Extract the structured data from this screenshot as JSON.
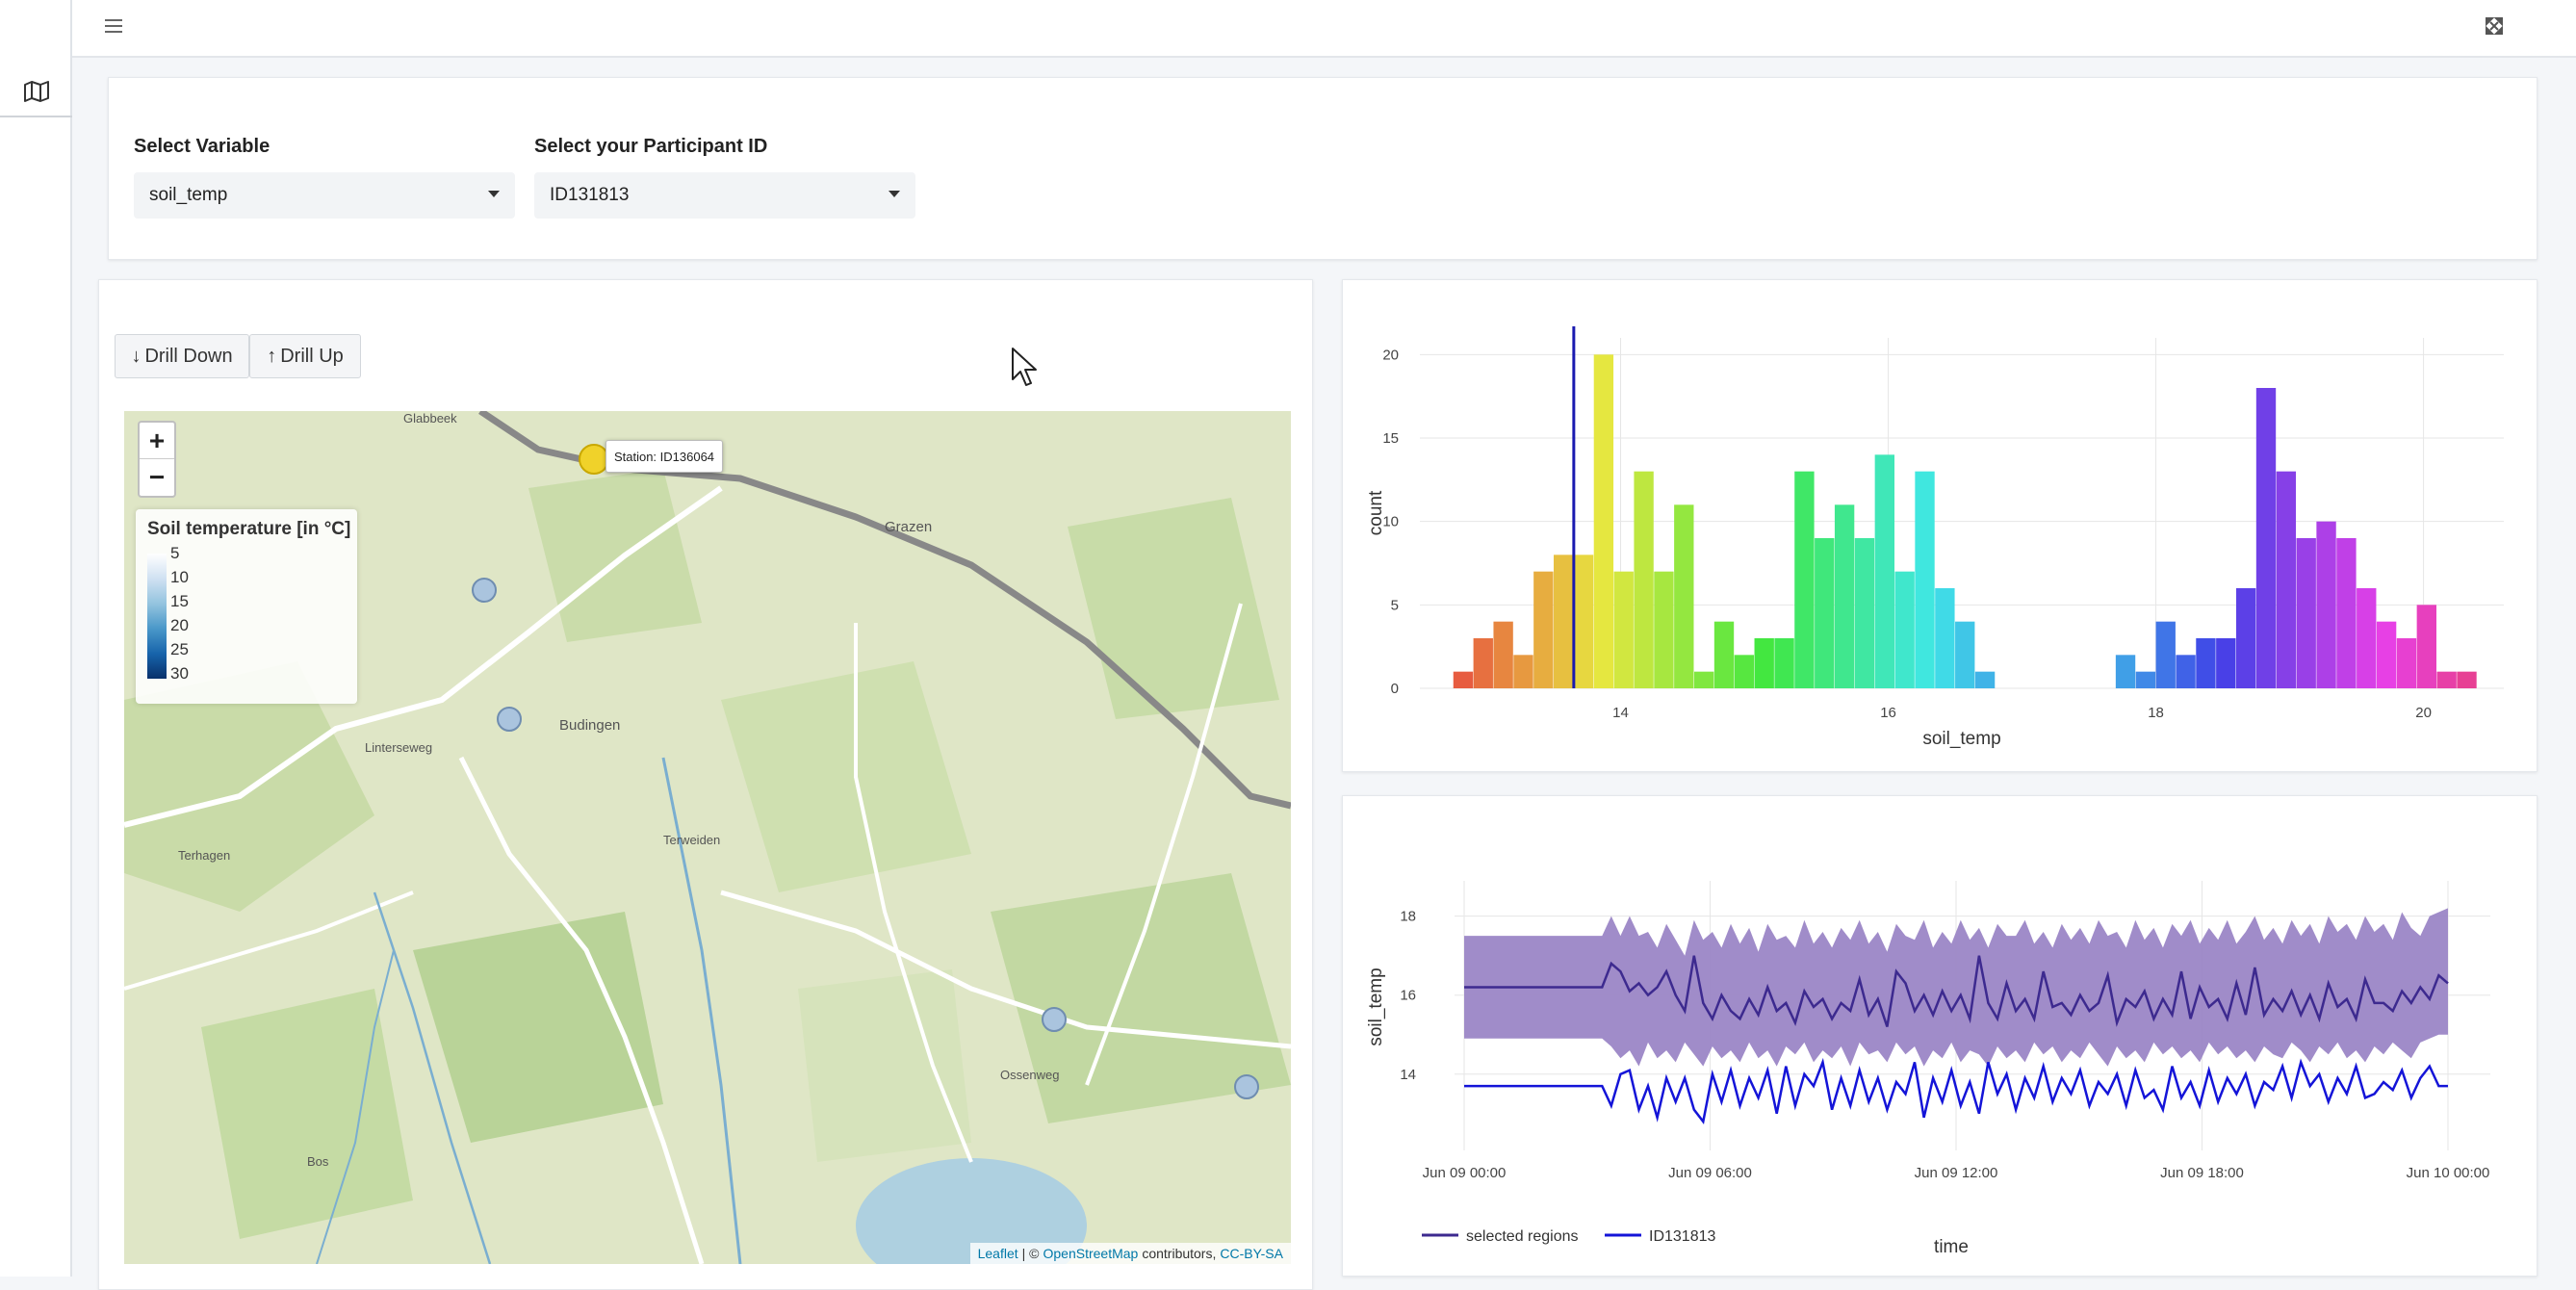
{
  "sidebar": {
    "map_icon": "map-icon"
  },
  "topbar": {
    "menu_icon": "hamburger-icon",
    "expand_icon": "expand-icon"
  },
  "controls": {
    "variable_label": "Select Variable",
    "variable_value": "soil_temp",
    "participant_label": "Select your Participant ID",
    "participant_value": "ID131813"
  },
  "map": {
    "drill_down": "Drill Down",
    "drill_up": "Drill Up",
    "zoom_in": "+",
    "zoom_out": "−",
    "legend_title": "Soil temperature [in °C]",
    "legend_ticks": [
      "5",
      "10",
      "15",
      "20",
      "25",
      "30"
    ],
    "tooltip": "Station: ID136064",
    "place_labels": [
      "Glabbeek",
      "Grazen",
      "Budingen",
      "Terweiden",
      "Terhagen",
      "Ossenweg",
      "Bos",
      "Linterseweg"
    ],
    "attribution": {
      "leaflet": "Leaflet",
      "sep": "| ©",
      "osm": "OpenStreetMap",
      "contrib": "contributors,",
      "license": "CC-BY-SA"
    },
    "colors": {
      "selected_station": "#f0d22a",
      "station": "#aac4de"
    }
  },
  "chart_data": [
    {
      "type": "bar",
      "title": "",
      "xlabel": "soil_temp",
      "ylabel": "count",
      "xlim": [
        12.5,
        20.6
      ],
      "ylim": [
        0,
        21
      ],
      "x_ticks": [
        14,
        16,
        18,
        20
      ],
      "y_ticks": [
        0,
        5,
        10,
        15,
        20
      ],
      "bin_width": 0.15,
      "bins_start": [
        12.75,
        12.9,
        13.05,
        13.2,
        13.35,
        13.5,
        13.65,
        13.8,
        13.95,
        14.1,
        14.25,
        14.4,
        14.55,
        14.7,
        14.85,
        15.0,
        15.15,
        15.3,
        15.45,
        15.6,
        15.75,
        15.9,
        16.05,
        16.2,
        16.35,
        16.5,
        16.65,
        17.7,
        17.85,
        18.0,
        18.15,
        18.3,
        18.45,
        18.6,
        18.75,
        18.9,
        19.05,
        19.2,
        19.35,
        19.5,
        19.65,
        19.8,
        19.95,
        20.1,
        20.25
      ],
      "counts": [
        1,
        3,
        4,
        2,
        7,
        8,
        8,
        20,
        7,
        13,
        7,
        11,
        1,
        4,
        2,
        3,
        3,
        13,
        9,
        11,
        9,
        14,
        7,
        13,
        6,
        4,
        1,
        2,
        1,
        4,
        2,
        3,
        3,
        6,
        18,
        13,
        9,
        10,
        9,
        6,
        4,
        3,
        5,
        1,
        1
      ],
      "marker_x": 13.65,
      "grid": true
    },
    {
      "type": "area",
      "title": "",
      "xlabel": "time",
      "ylabel": "soil_temp",
      "x_ticks": [
        "Jun 09 00:00",
        "Jun 09 06:00",
        "Jun 09 12:00",
        "Jun 09 18:00",
        "Jun 10 00:00"
      ],
      "y_ticks": [
        14,
        16,
        18
      ],
      "ylim": [
        12.8,
        18.6
      ],
      "band_upper": [
        17.5,
        17.5,
        17.5,
        17.5,
        17.5,
        17.5,
        17.5,
        17.5,
        17.5,
        17.5,
        17.5,
        17.5,
        17.5,
        17.5,
        17.5,
        17.5,
        18.0,
        17.5,
        18.0,
        17.5,
        17.6,
        17.2,
        17.8,
        17.4,
        17.0,
        17.9,
        17.4,
        17.6,
        17.2,
        17.8,
        17.3,
        17.7,
        17.1,
        17.8,
        17.4,
        17.5,
        17.2,
        17.9,
        17.3,
        17.6,
        17.2,
        17.7,
        17.4,
        17.9,
        17.3,
        17.6,
        17.1,
        17.8,
        17.5,
        17.4,
        17.9,
        17.2,
        17.6,
        17.3,
        17.9,
        17.4,
        17.7,
        17.2,
        17.8,
        17.5,
        17.5,
        17.9,
        17.3,
        17.6,
        17.2,
        17.8,
        17.4,
        17.7,
        17.3,
        17.9,
        17.5,
        17.6,
        17.2,
        17.9,
        17.4,
        17.7,
        17.2,
        17.8,
        17.5,
        17.9,
        17.3,
        17.7,
        17.4,
        17.9,
        17.3,
        17.6,
        18.0,
        17.4,
        17.7,
        17.3,
        17.9,
        17.5,
        17.8,
        17.3,
        18.0,
        17.6,
        17.8,
        17.4,
        18.0,
        17.6,
        17.8,
        17.4,
        18.1,
        17.7,
        17.5,
        18.0,
        18.1,
        18.2
      ],
      "band_lower": [
        14.9,
        14.9,
        14.9,
        14.9,
        14.9,
        14.9,
        14.9,
        14.9,
        14.9,
        14.9,
        14.9,
        14.9,
        14.9,
        14.9,
        14.9,
        14.9,
        14.7,
        14.4,
        14.6,
        14.2,
        14.8,
        14.4,
        14.6,
        14.3,
        14.8,
        14.5,
        14.2,
        14.7,
        14.4,
        14.6,
        14.3,
        14.8,
        14.4,
        14.6,
        14.2,
        14.7,
        14.5,
        14.8,
        14.3,
        14.6,
        14.4,
        14.7,
        14.2,
        14.8,
        14.5,
        14.6,
        14.3,
        14.8,
        14.5,
        14.7,
        14.2,
        14.6,
        14.4,
        14.8,
        14.3,
        14.6,
        14.5,
        14.2,
        14.7,
        14.4,
        14.6,
        14.3,
        14.8,
        14.5,
        14.7,
        14.3,
        14.6,
        14.4,
        14.8,
        14.5,
        14.2,
        14.7,
        14.4,
        14.6,
        14.3,
        14.8,
        14.5,
        14.7,
        14.4,
        14.6,
        14.3,
        14.8,
        14.5,
        14.7,
        14.4,
        14.6,
        14.3,
        14.7,
        14.5,
        14.4,
        14.8,
        14.6,
        14.3,
        14.7,
        14.5,
        14.8,
        14.4,
        14.6,
        14.3,
        14.7,
        14.5,
        14.8,
        14.6,
        14.4,
        14.8,
        14.9,
        15.0,
        15.0
      ],
      "series": [
        {
          "name": "selected regions",
          "color": "#3d2a8f",
          "values": [
            16.2,
            16.2,
            16.2,
            16.2,
            16.2,
            16.2,
            16.2,
            16.2,
            16.2,
            16.2,
            16.2,
            16.2,
            16.2,
            16.2,
            16.2,
            16.2,
            16.8,
            16.6,
            16.1,
            16.3,
            16.0,
            16.2,
            16.6,
            16.0,
            15.6,
            17.0,
            15.8,
            15.4,
            16.0,
            15.6,
            15.4,
            15.9,
            15.5,
            16.2,
            15.6,
            15.8,
            15.3,
            16.1,
            15.7,
            15.9,
            15.4,
            15.8,
            15.6,
            16.4,
            15.5,
            15.9,
            15.2,
            16.6,
            16.3,
            15.6,
            16.0,
            15.5,
            16.1,
            15.6,
            16.0,
            15.4,
            17.0,
            15.8,
            15.4,
            16.3,
            15.6,
            15.9,
            15.4,
            16.6,
            15.7,
            15.8,
            15.5,
            16.0,
            15.6,
            15.8,
            16.5,
            15.3,
            15.9,
            15.7,
            16.1,
            15.4,
            15.9,
            15.5,
            16.6,
            15.4,
            16.2,
            15.7,
            15.9,
            15.4,
            16.3,
            15.5,
            16.7,
            15.5,
            15.9,
            15.6,
            16.1,
            15.5,
            16.0,
            15.4,
            16.3,
            15.7,
            15.9,
            15.4,
            16.4,
            15.8,
            15.8,
            15.6,
            16.1,
            15.8,
            16.2,
            15.9,
            16.5,
            16.3
          ]
        },
        {
          "name": "ID131813",
          "color": "#1414d8",
          "values": [
            13.7,
            13.7,
            13.7,
            13.7,
            13.7,
            13.7,
            13.7,
            13.7,
            13.7,
            13.7,
            13.7,
            13.7,
            13.7,
            13.7,
            13.7,
            13.7,
            13.2,
            14.0,
            14.1,
            13.1,
            13.7,
            12.9,
            13.9,
            13.3,
            13.9,
            13.1,
            12.8,
            14.0,
            13.3,
            14.1,
            13.2,
            13.9,
            13.4,
            14.1,
            13.0,
            14.2,
            13.2,
            14.0,
            13.7,
            14.3,
            13.1,
            13.9,
            13.2,
            14.1,
            13.3,
            13.9,
            13.1,
            13.8,
            13.5,
            14.3,
            12.9,
            13.9,
            13.3,
            14.1,
            13.2,
            13.8,
            13.0,
            14.3,
            13.5,
            14.0,
            13.1,
            13.9,
            13.4,
            14.2,
            13.3,
            13.9,
            13.5,
            14.1,
            13.2,
            13.8,
            13.5,
            14.0,
            13.2,
            14.1,
            13.4,
            13.6,
            13.1,
            14.2,
            13.4,
            13.8,
            13.2,
            14.1,
            13.3,
            13.9,
            13.5,
            14.0,
            13.2,
            13.8,
            13.6,
            14.2,
            13.4,
            14.3,
            13.7,
            14.0,
            13.3,
            13.9,
            13.5,
            14.2,
            13.4,
            13.5,
            13.8,
            13.6,
            14.1,
            13.4,
            13.9,
            14.2,
            13.7,
            13.7
          ]
        }
      ],
      "legend_position": "bottom-left",
      "grid": true
    }
  ]
}
